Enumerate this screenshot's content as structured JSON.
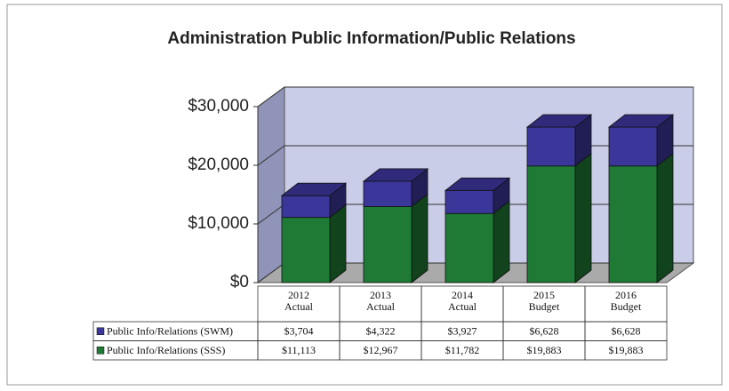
{
  "chart_data": {
    "type": "bar3d_stacked",
    "title": "Administration Public Information/Public Relations",
    "categories": [
      "2012 Actual",
      "2013 Actual",
      "2014 Actual",
      "2015 Budget",
      "2016 Budget"
    ],
    "series": [
      {
        "name": "Public Info/Relations (SWM)",
        "color": "#3b3699",
        "values": [
          3704,
          4322,
          3927,
          6628,
          6628
        ],
        "value_labels": [
          "$3,704",
          "$4,322",
          "$3,927",
          "$6,628",
          "$6,628"
        ]
      },
      {
        "name": "Public Info/Relations (SSS)",
        "color": "#1e7a35",
        "values": [
          11113,
          12967,
          11782,
          19883,
          19883
        ],
        "value_labels": [
          "$11,113",
          "$12,967",
          "$11,782",
          "$19,883",
          "$19,883"
        ]
      }
    ],
    "ylim": [
      0,
      30000
    ],
    "yticks": [
      {
        "value": 0,
        "label": "$0"
      },
      {
        "value": 10000,
        "label": "$10,000"
      },
      {
        "value": 20000,
        "label": "$20,000"
      },
      {
        "value": 30000,
        "label": "$30,000"
      }
    ],
    "grid": true
  }
}
